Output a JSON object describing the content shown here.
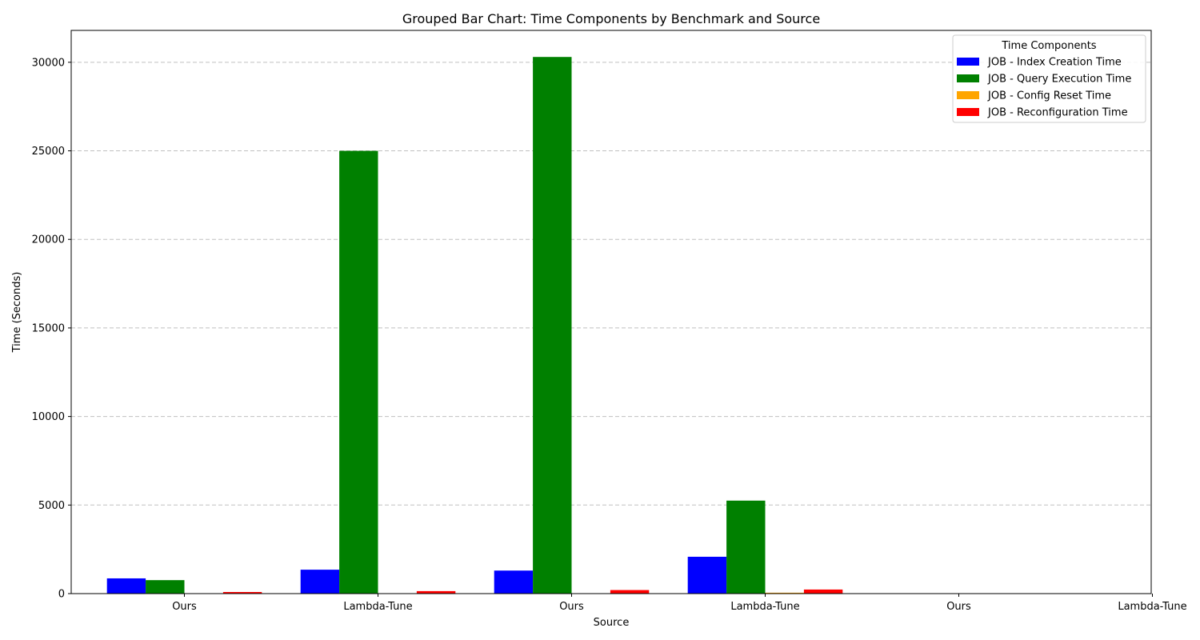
{
  "chart_data": {
    "type": "bar",
    "title": "Grouped Bar Chart: Time Components by Benchmark and Source",
    "xlabel": "Source",
    "ylabel": "Time (Seconds)",
    "categories": [
      "Ours",
      "Lambda-Tune",
      "Ours",
      "Lambda-Tune",
      "Ours",
      "Lambda-Tune"
    ],
    "ylim": [
      0,
      31800
    ],
    "yticks": [
      0,
      5000,
      10000,
      15000,
      20000,
      25000,
      30000
    ],
    "grid": "y-dashed",
    "legend": {
      "title": "Time Components",
      "placement": "top-right"
    },
    "series": [
      {
        "name": "JOB - Index Creation Time",
        "color": "#0000ff",
        "values": [
          860,
          1350,
          1300,
          2080,
          0,
          0
        ]
      },
      {
        "name": "JOB - Query Execution Time",
        "color": "#008000",
        "values": [
          760,
          25000,
          30300,
          5250,
          0,
          0
        ]
      },
      {
        "name": "JOB - Config Reset Time",
        "color": "#ffa500",
        "values": [
          10,
          15,
          15,
          50,
          0,
          0
        ]
      },
      {
        "name": "JOB - Reconfiguration Time",
        "color": "#ff0000",
        "values": [
          90,
          140,
          200,
          230,
          0,
          0
        ]
      }
    ]
  }
}
